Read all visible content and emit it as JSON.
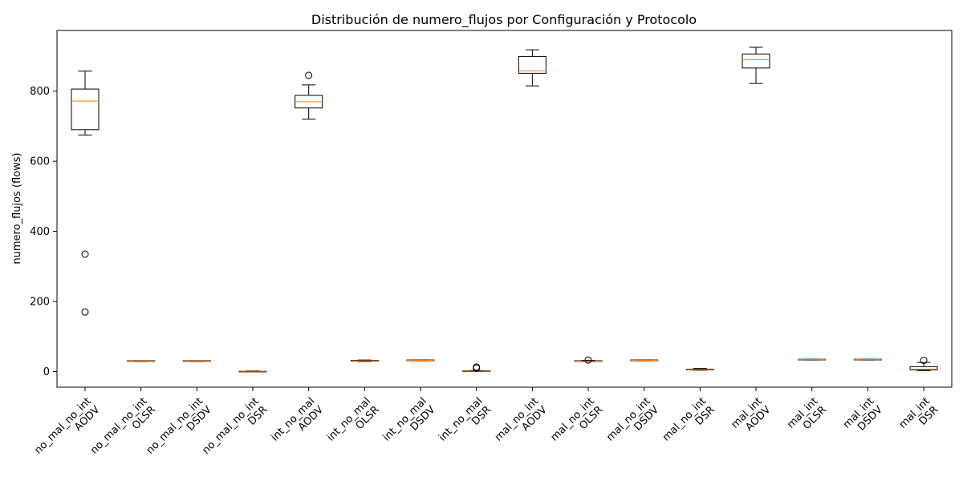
{
  "chart_data": {
    "type": "box",
    "title": "Distribución de numero_flujos por Configuración y Protocolo",
    "xlabel": "",
    "ylabel": "numero_flujos (flows)",
    "ylim": [
      -45,
      960
    ],
    "yticks": [
      0,
      200,
      400,
      600,
      800
    ],
    "grid": false,
    "colors": {
      "box": "#000000",
      "median": "#ff7f0e",
      "background": "#ffffff"
    },
    "categories": [
      [
        "no_mal_no_int",
        "AODV"
      ],
      [
        "no_mal_no_int",
        "OLSR"
      ],
      [
        "no_mal_no_int",
        "DSDV"
      ],
      [
        "no_mal_no_int",
        "DSR"
      ],
      [
        "int_no_mal",
        "AODV"
      ],
      [
        "int_no_mal",
        "OLSR"
      ],
      [
        "int_no_mal",
        "DSDV"
      ],
      [
        "int_no_mal",
        "DSR"
      ],
      [
        "mal_no_int",
        "AODV"
      ],
      [
        "mal_no_int",
        "OLSR"
      ],
      [
        "mal_no_int",
        "DSDV"
      ],
      [
        "mal_no_int",
        "DSR"
      ],
      [
        "mal_int",
        "AODV"
      ],
      [
        "mal_int",
        "OLSR"
      ],
      [
        "mal_int",
        "DSDV"
      ],
      [
        "mal_int",
        "DSR"
      ]
    ],
    "boxes": [
      {
        "whislo": 675,
        "q1": 690,
        "med": 772,
        "q3": 806,
        "whishi": 857,
        "fliers": [
          335,
          170
        ]
      },
      {
        "whislo": 29,
        "q1": 30,
        "med": 30,
        "q3": 31,
        "whishi": 31,
        "fliers": []
      },
      {
        "whislo": 29,
        "q1": 30,
        "med": 30,
        "q3": 31,
        "whishi": 31,
        "fliers": []
      },
      {
        "whislo": 0,
        "q1": 0,
        "med": 1,
        "q3": 1,
        "whishi": 2,
        "fliers": []
      },
      {
        "whislo": 720,
        "q1": 752,
        "med": 770,
        "q3": 788,
        "whishi": 818,
        "fliers": [
          845
        ]
      },
      {
        "whislo": 29,
        "q1": 30,
        "med": 31,
        "q3": 32,
        "whishi": 33,
        "fliers": []
      },
      {
        "whislo": 31,
        "q1": 32,
        "med": 32,
        "q3": 33,
        "whishi": 33,
        "fliers": []
      },
      {
        "whislo": 0,
        "q1": 0,
        "med": 1,
        "q3": 2,
        "whishi": 3,
        "fliers": [
          10,
          13
        ]
      },
      {
        "whislo": 815,
        "q1": 851,
        "med": 858,
        "q3": 899,
        "whishi": 918,
        "fliers": []
      },
      {
        "whislo": 29,
        "q1": 30,
        "med": 30,
        "q3": 31,
        "whishi": 32,
        "fliers": [
          33
        ]
      },
      {
        "whislo": 31,
        "q1": 32,
        "med": 32,
        "q3": 33,
        "whishi": 33,
        "fliers": []
      },
      {
        "whislo": 4,
        "q1": 5,
        "med": 6,
        "q3": 7,
        "whishi": 9,
        "fliers": []
      },
      {
        "whislo": 822,
        "q1": 866,
        "med": 890,
        "q3": 906,
        "whishi": 925,
        "fliers": []
      },
      {
        "whislo": 33,
        "q1": 34,
        "med": 34,
        "q3": 35,
        "whishi": 35,
        "fliers": []
      },
      {
        "whislo": 33,
        "q1": 34,
        "med": 34,
        "q3": 35,
        "whishi": 35,
        "fliers": []
      },
      {
        "whislo": 3,
        "q1": 5,
        "med": 7,
        "q3": 14,
        "whishi": 26,
        "fliers": [
          32
        ]
      }
    ]
  }
}
